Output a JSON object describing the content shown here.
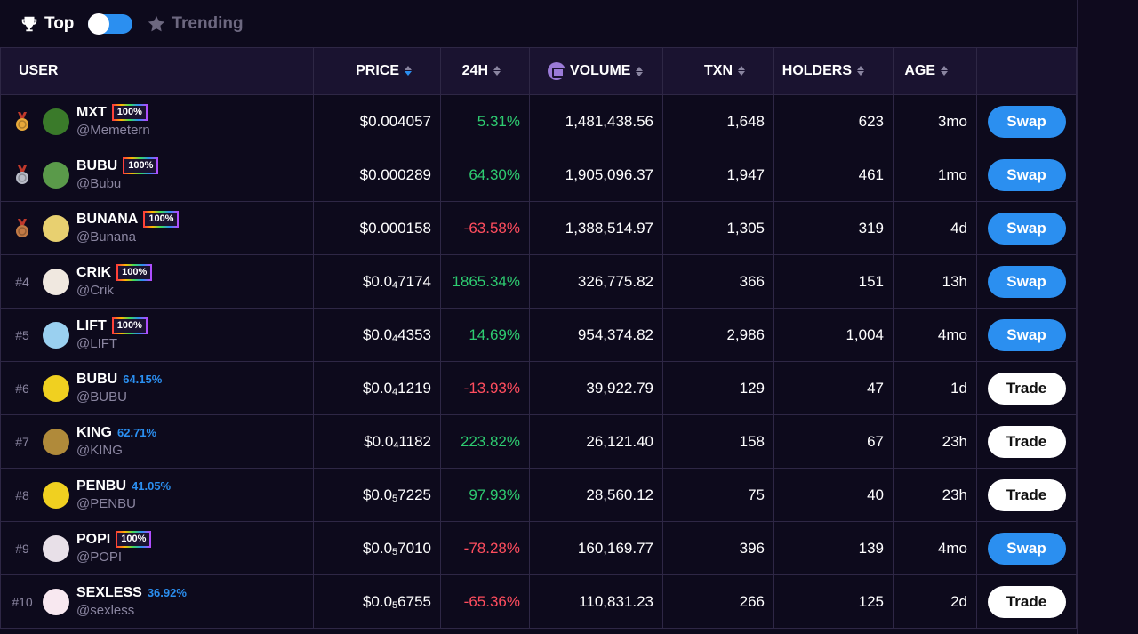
{
  "topbar": {
    "top_label": "Top",
    "trending_label": "Trending"
  },
  "columns": {
    "user": "USER",
    "price": "PRICE",
    "h24": "24H",
    "volume": "VOLUME",
    "txn": "TXN",
    "holders": "HOLDERS",
    "age": "AGE"
  },
  "colors": {
    "accent": "#2b8ff0",
    "positive": "#2ecc71",
    "negative": "#ff4d5e",
    "gold": "#e8a93a",
    "silver": "#b9bcc8",
    "bronze": "#c27a45"
  },
  "rows": [
    {
      "rank": "",
      "medal": "gold",
      "name": "MXT",
      "badge": "100%",
      "handle": "@Memetern",
      "price_main": "$0.004057",
      "price_sub": "",
      "price_tail": "",
      "change": "5.31%",
      "dir": "pos",
      "volume": "1,481,438.56",
      "txn": "1,648",
      "holders": "623",
      "age": "3mo",
      "action": "Swap",
      "avatar": "#3a7a2a"
    },
    {
      "rank": "",
      "medal": "silver",
      "name": "BUBU",
      "badge": "100%",
      "handle": "@Bubu",
      "price_main": "$0.000289",
      "price_sub": "",
      "price_tail": "",
      "change": "64.30%",
      "dir": "pos",
      "volume": "1,905,096.37",
      "txn": "1,947",
      "holders": "461",
      "age": "1mo",
      "action": "Swap",
      "avatar": "#5a9a4a"
    },
    {
      "rank": "",
      "medal": "bronze",
      "name": "BUNANA",
      "badge": "100%",
      "handle": "@Bunana",
      "price_main": "$0.000158",
      "price_sub": "",
      "price_tail": "",
      "change": "-63.58%",
      "dir": "neg",
      "volume": "1,388,514.97",
      "txn": "1,305",
      "holders": "319",
      "age": "4d",
      "action": "Swap",
      "avatar": "#e8d070"
    },
    {
      "rank": "#4",
      "medal": "",
      "name": "CRIK",
      "badge": "100%",
      "handle": "@Crik",
      "price_main": "$0.0",
      "price_sub": "4",
      "price_tail": "7174",
      "change": "1865.34%",
      "dir": "pos",
      "volume": "326,775.82",
      "txn": "366",
      "holders": "151",
      "age": "13h",
      "action": "Swap",
      "avatar": "#f0e8e0"
    },
    {
      "rank": "#5",
      "medal": "",
      "name": "LIFT",
      "badge": "100%",
      "handle": "@LIFT",
      "price_main": "$0.0",
      "price_sub": "4",
      "price_tail": "4353",
      "change": "14.69%",
      "dir": "pos",
      "volume": "954,374.82",
      "txn": "2,986",
      "holders": "1,004",
      "age": "4mo",
      "action": "Swap",
      "avatar": "#9ad0f0"
    },
    {
      "rank": "#6",
      "medal": "",
      "name": "BUBU",
      "badge": "64.15%",
      "handle": "@BUBU",
      "price_main": "$0.0",
      "price_sub": "4",
      "price_tail": "1219",
      "change": "-13.93%",
      "dir": "neg",
      "volume": "39,922.79",
      "txn": "129",
      "holders": "47",
      "age": "1d",
      "action": "Trade",
      "avatar": "#f0d020"
    },
    {
      "rank": "#7",
      "medal": "",
      "name": "KING",
      "badge": "62.71%",
      "handle": "@KING",
      "price_main": "$0.0",
      "price_sub": "4",
      "price_tail": "1182",
      "change": "223.82%",
      "dir": "pos",
      "volume": "26,121.40",
      "txn": "158",
      "holders": "67",
      "age": "23h",
      "action": "Trade",
      "avatar": "#b08a3a"
    },
    {
      "rank": "#8",
      "medal": "",
      "name": "PENBU",
      "badge": "41.05%",
      "handle": "@PENBU",
      "price_main": "$0.0",
      "price_sub": "5",
      "price_tail": "7225",
      "change": "97.93%",
      "dir": "pos",
      "volume": "28,560.12",
      "txn": "75",
      "holders": "40",
      "age": "23h",
      "action": "Trade",
      "avatar": "#f0d020"
    },
    {
      "rank": "#9",
      "medal": "",
      "name": "POPI",
      "badge": "100%",
      "handle": "@POPI",
      "price_main": "$0.0",
      "price_sub": "5",
      "price_tail": "7010",
      "change": "-78.28%",
      "dir": "neg",
      "volume": "160,169.77",
      "txn": "396",
      "holders": "139",
      "age": "4mo",
      "action": "Swap",
      "avatar": "#e8e0e8"
    },
    {
      "rank": "#10",
      "medal": "",
      "name": "SEXLESS",
      "badge": "36.92%",
      "handle": "@sexless",
      "price_main": "$0.0",
      "price_sub": "5",
      "price_tail": "6755",
      "change": "-65.36%",
      "dir": "neg",
      "volume": "110,831.23",
      "txn": "266",
      "holders": "125",
      "age": "2d",
      "action": "Trade",
      "avatar": "#f8e8f0"
    }
  ]
}
